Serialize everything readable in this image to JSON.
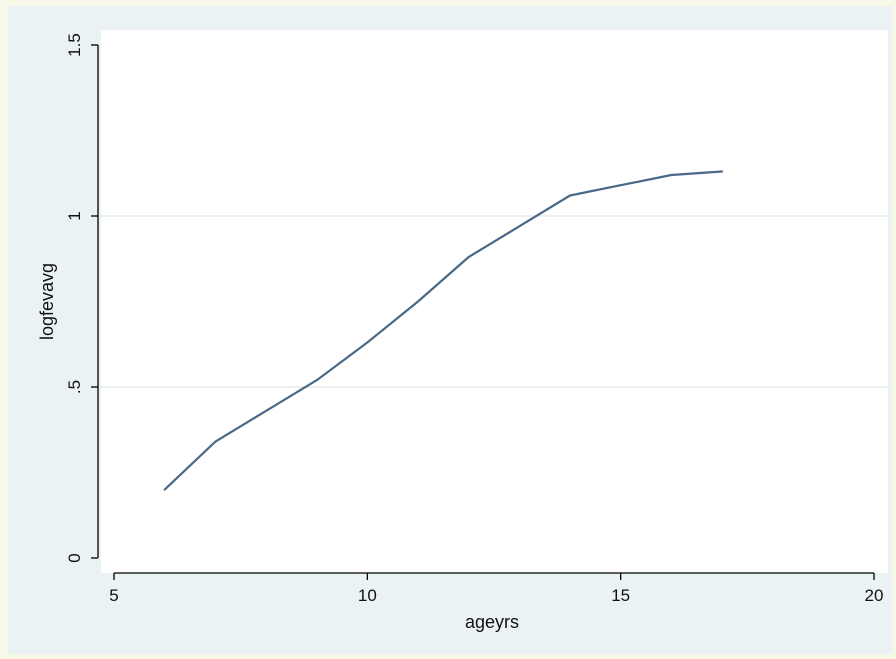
{
  "chart_data": {
    "type": "line",
    "title": "",
    "xlabel": "ageyrs",
    "ylabel": "logfevavg",
    "xlim": [
      5,
      20
    ],
    "ylim": [
      0,
      1.5
    ],
    "x_ticks": [
      5,
      10,
      15,
      20
    ],
    "x_tick_labels": [
      "5",
      "10",
      "15",
      "20"
    ],
    "y_ticks": [
      0,
      0.5,
      1,
      1.5
    ],
    "y_tick_labels": [
      "0",
      ".5",
      "1",
      "1.5"
    ],
    "grid": "horizontal",
    "legend": "none",
    "series": [
      {
        "x": [
          6,
          7,
          8,
          9,
          10,
          11,
          12,
          13,
          14,
          15,
          16,
          17
        ],
        "y": [
          0.2,
          0.34,
          0.43,
          0.52,
          0.63,
          0.75,
          0.88,
          0.97,
          1.06,
          1.09,
          1.12,
          1.13
        ],
        "color": "#4a6987"
      }
    ],
    "colors": {
      "page_background": "#f7f9e8",
      "frame_background": "#eaf2f3",
      "plot_background": "#ffffff",
      "gridline": "#dfe6ea",
      "axis": "#000000"
    }
  }
}
